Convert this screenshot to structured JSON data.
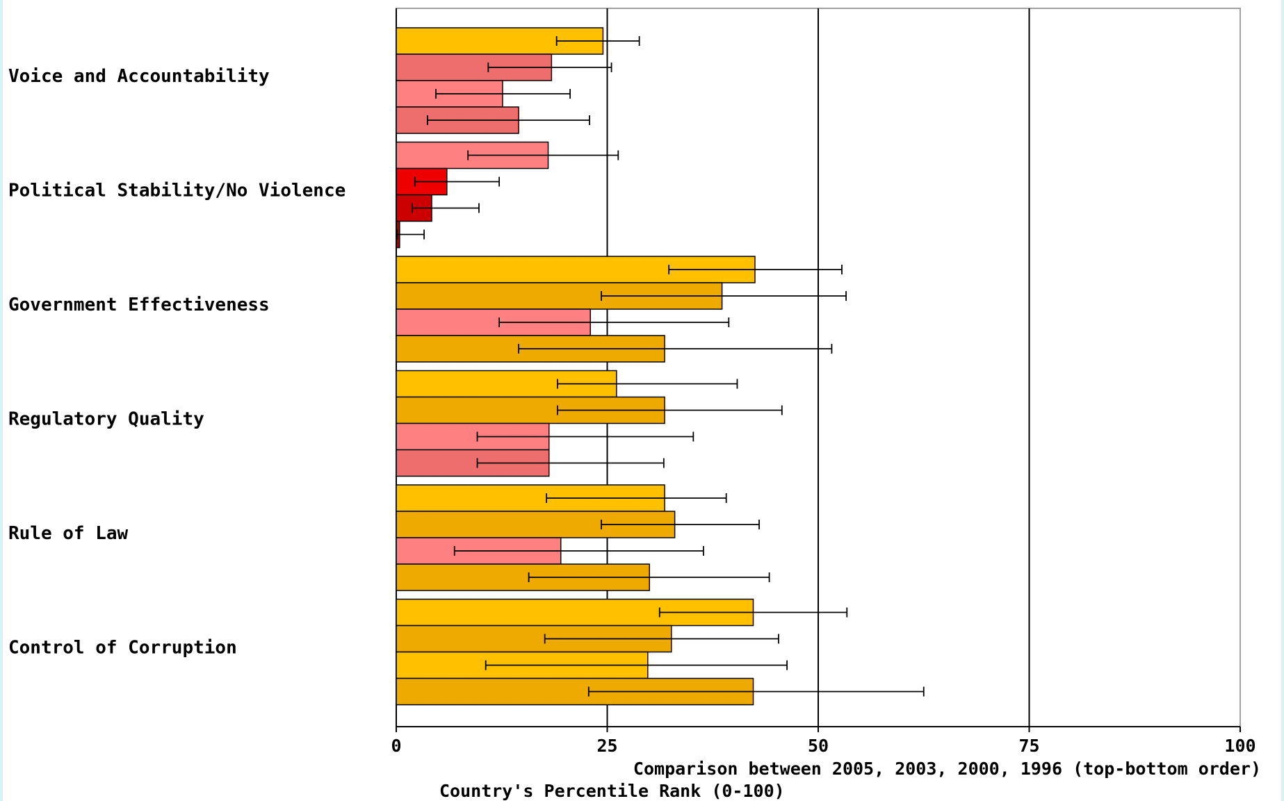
{
  "chart_data": {
    "type": "bar",
    "orientation": "horizontal",
    "categories": [
      "Voice and Accountability",
      "Political Stability/No Violence",
      "Government Effectiveness",
      "Regulatory Quality",
      "Rule of Law",
      "Control of Corruption"
    ],
    "series_order_note": "Comparison between 2005, 2003, 2000, 1996 (top-bottom order)",
    "series_order": [
      "2005",
      "2003",
      "2000",
      "1996"
    ],
    "values": [
      [
        24.5,
        18.4,
        12.6,
        14.5
      ],
      [
        18.0,
        6.0,
        4.2,
        0.4
      ],
      [
        42.5,
        38.6,
        23.0,
        31.8
      ],
      [
        26.1,
        31.8,
        18.1,
        18.1
      ],
      [
        31.8,
        33.0,
        19.5,
        30.0
      ],
      [
        42.3,
        32.6,
        29.8,
        42.3
      ]
    ],
    "error_low": [
      [
        19.0,
        10.9,
        4.7,
        3.7
      ],
      [
        8.5,
        2.2,
        1.9,
        0.1
      ],
      [
        32.3,
        24.3,
        12.2,
        14.5
      ],
      [
        19.1,
        19.1,
        9.6,
        9.6
      ],
      [
        17.8,
        24.3,
        6.9,
        15.7
      ],
      [
        31.2,
        17.6,
        10.6,
        22.8
      ]
    ],
    "error_high": [
      [
        28.8,
        25.5,
        20.6,
        22.9
      ],
      [
        26.3,
        12.2,
        9.8,
        3.3
      ],
      [
        52.8,
        53.3,
        39.4,
        51.6
      ],
      [
        40.4,
        45.7,
        35.2,
        31.7
      ],
      [
        39.1,
        43.0,
        36.4,
        44.2
      ],
      [
        53.4,
        45.3,
        46.3,
        62.5
      ]
    ],
    "bar_colors": [
      [
        "#ffc000",
        "#ee6e6e",
        "#ff8080",
        "#ee6e6e"
      ],
      [
        "#ff8080",
        "#ee0000",
        "#cc0000",
        "#aa0000"
      ],
      [
        "#ffc000",
        "#eeaa00",
        "#ff8080",
        "#eeaa00"
      ],
      [
        "#ffc000",
        "#eeaa00",
        "#ff8080",
        "#ee6e6e"
      ],
      [
        "#ffc000",
        "#eeaa00",
        "#ff8080",
        "#eeaa00"
      ],
      [
        "#ffc000",
        "#eeaa00",
        "#ffc000",
        "#eeaa00"
      ]
    ],
    "xlim": [
      0,
      100
    ],
    "x_ticks": [
      "0",
      "25",
      "50",
      "75",
      "100"
    ],
    "x_tick_values": [
      0,
      25,
      50,
      75,
      100
    ],
    "xlabel": "Country's Percentile Rank (0-100)",
    "grid": "vertical lines at 25, 50, 75",
    "legend": "none"
  }
}
